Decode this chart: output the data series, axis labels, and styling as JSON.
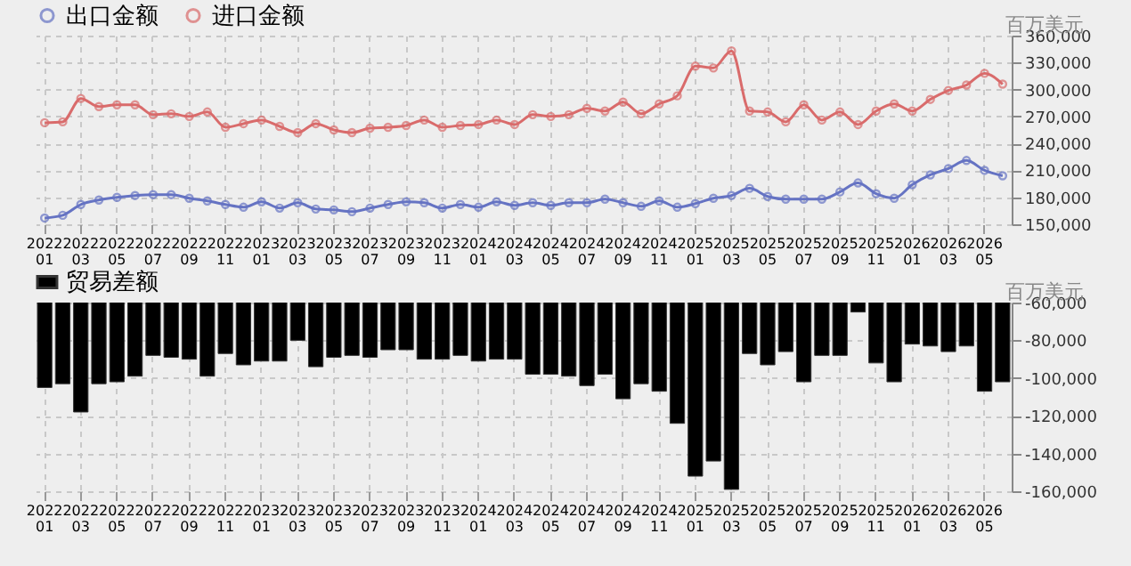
{
  "chart_data": [
    {
      "type": "line",
      "legend": "top left",
      "grid": true,
      "marker": "circle",
      "line_style": "solid",
      "ylabel": "百万美元",
      "ylim": [
        150000,
        360000
      ],
      "yticks": [
        {
          "value": 150000,
          "label": "150,000"
        },
        {
          "value": 180000,
          "label": "180,000"
        },
        {
          "value": 210000,
          "label": "210,000"
        },
        {
          "value": 240000,
          "label": "240,000"
        },
        {
          "value": 270000,
          "label": "270,000"
        },
        {
          "value": 300000,
          "label": "300,000"
        },
        {
          "value": 330000,
          "label": "330,000"
        },
        {
          "value": 360000,
          "label": "360,000"
        }
      ],
      "categories": [
        "2022\n01",
        null,
        "2022\n03",
        null,
        "2022\n05",
        null,
        "2022\n07",
        null,
        "2022\n09",
        null,
        "2022\n11",
        null,
        "2023\n01",
        null,
        "2023\n03",
        null,
        "2023\n05",
        null,
        "2023\n07",
        null,
        "2023\n09",
        null,
        "2023\n11",
        null,
        "2024\n01",
        null,
        "2024\n03",
        null,
        "2024\n05",
        null,
        "2024\n07",
        null,
        "2024\n09",
        null,
        "2024\n11",
        null,
        "2025\n01",
        null,
        "2025\n03",
        null,
        "2025\n05",
        null,
        "2025\n07",
        null,
        "2025\n09",
        null,
        "2025\n11",
        null,
        "2026\n01",
        null,
        "2026\n03",
        null,
        "2026\n05",
        null
      ],
      "series": [
        {
          "name": "出口金额",
          "color": "#6573c3",
          "values": [
            157000,
            160000,
            172000,
            177000,
            180000,
            182000,
            183000,
            183000,
            179000,
            176000,
            172000,
            169000,
            175000,
            168000,
            174000,
            167000,
            166000,
            164000,
            168000,
            172000,
            175000,
            174000,
            168000,
            172000,
            169000,
            175000,
            171000,
            174000,
            171000,
            174000,
            174000,
            178000,
            174000,
            170000,
            176000,
            169000,
            173000,
            179000,
            182000,
            190000,
            181000,
            178000,
            178000,
            178000,
            186000,
            196000,
            184000,
            179000,
            194000,
            205000,
            212000,
            221000,
            210000,
            204000
          ]
        },
        {
          "name": "进口金额",
          "color": "#d96b6b",
          "values": [
            263000,
            264000,
            290000,
            281000,
            283000,
            283000,
            272000,
            273000,
            270000,
            275000,
            258000,
            262000,
            266000,
            259000,
            252000,
            262000,
            255000,
            252000,
            257000,
            258000,
            260000,
            266000,
            258000,
            260000,
            261000,
            266000,
            261000,
            272000,
            270000,
            272000,
            279000,
            276000,
            286000,
            273000,
            284000,
            293000,
            326000,
            324000,
            343000,
            276000,
            275000,
            264000,
            283000,
            266000,
            275000,
            261000,
            276000,
            284000,
            276000,
            289000,
            299000,
            305000,
            318000,
            306000
          ]
        }
      ]
    },
    {
      "type": "bar",
      "legend": "top left",
      "grid": true,
      "ylabel": "百万美元",
      "ylim": [
        -160000,
        -60000
      ],
      "yticks": [
        {
          "value": -160000,
          "label": "-160,000"
        },
        {
          "value": -140000,
          "label": "-140,000"
        },
        {
          "value": -120000,
          "label": "-120,000"
        },
        {
          "value": -100000,
          "label": "-100,000"
        },
        {
          "value": -80000,
          "label": "-80,000"
        },
        {
          "value": -60000,
          "label": "-60,000"
        }
      ],
      "categories": [
        "2022\n01",
        null,
        "2022\n03",
        null,
        "2022\n05",
        null,
        "2022\n07",
        null,
        "2022\n09",
        null,
        "2022\n11",
        null,
        "2023\n01",
        null,
        "2023\n03",
        null,
        "2023\n05",
        null,
        "2023\n07",
        null,
        "2023\n09",
        null,
        "2023\n11",
        null,
        "2024\n01",
        null,
        "2024\n03",
        null,
        "2024\n05",
        null,
        "2024\n07",
        null,
        "2024\n09",
        null,
        "2024\n11",
        null,
        "2025\n01",
        null,
        "2025\n03",
        null,
        "2025\n05",
        null,
        "2025\n07",
        null,
        "2025\n09",
        null,
        "2025\n11",
        null,
        "2026\n01",
        null,
        "2026\n03",
        null,
        "2026\n05",
        null
      ],
      "series": [
        {
          "name": "贸易差额",
          "color": "#000000",
          "values": [
            -105000,
            -103000,
            -118000,
            -103000,
            -102000,
            -99000,
            -88000,
            -89000,
            -90000,
            -99000,
            -87000,
            -93000,
            -91000,
            -91000,
            -80000,
            -94000,
            -89000,
            -88000,
            -89000,
            -85000,
            -85000,
            -90000,
            -90000,
            -88000,
            -91000,
            -90000,
            -90000,
            -98000,
            -98000,
            -99000,
            -104000,
            -98000,
            -111000,
            -103000,
            -107000,
            -124000,
            -152000,
            -144000,
            -159000,
            -87000,
            -93000,
            -86000,
            -102000,
            -88000,
            -88000,
            -65000,
            -92000,
            -102000,
            -82000,
            -83000,
            -86000,
            -83000,
            -107000,
            -102000
          ]
        }
      ]
    }
  ]
}
